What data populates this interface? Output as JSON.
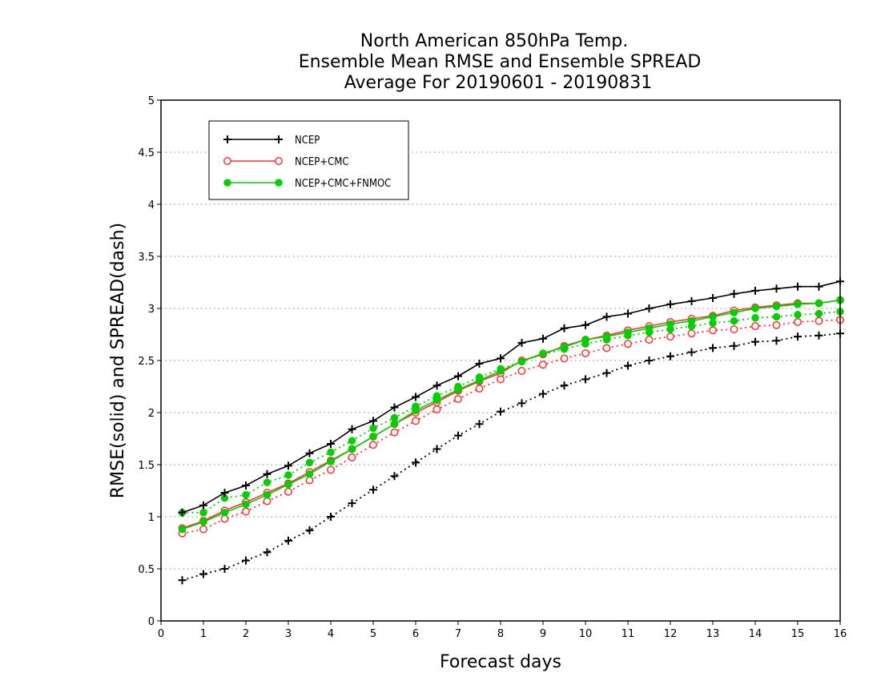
{
  "chart_data": {
    "type": "line",
    "title": [
      "North American 850hPa Temp.",
      "Ensemble Mean RMSE and Ensemble SPREAD",
      "Average For 20190601 - 20190831"
    ],
    "xlabel": "Forecast days",
    "ylabel": "RMSE(solid) and SPREAD(dash)",
    "xlim": [
      0,
      16
    ],
    "ylim": [
      0,
      5
    ],
    "xticks": [
      "0",
      "1",
      "2",
      "3",
      "4",
      "5",
      "6",
      "7",
      "8",
      "9",
      "10",
      "11",
      "12",
      "13",
      "14",
      "15",
      "16"
    ],
    "yticks": [
      "0",
      "0.5",
      "1",
      "1.5",
      "2",
      "2.5",
      "3",
      "3.5",
      "4",
      "4.5",
      "5"
    ],
    "grid": "horizontal dotted",
    "legend_position": "top-left",
    "x": [
      0.5,
      1,
      1.5,
      2,
      2.5,
      3,
      3.5,
      4,
      4.5,
      5,
      5.5,
      6,
      6.5,
      7,
      7.5,
      8,
      8.5,
      9,
      9.5,
      10,
      10.5,
      11,
      11.5,
      12,
      12.5,
      13,
      13.5,
      14,
      14.5,
      15,
      15.5,
      16
    ],
    "series": [
      {
        "name": "NCEP",
        "color": "#000000",
        "marker": "plus",
        "rmse": [
          1.04,
          1.11,
          1.23,
          1.3,
          1.41,
          1.49,
          1.61,
          1.7,
          1.84,
          1.92,
          2.05,
          2.15,
          2.26,
          2.35,
          2.47,
          2.52,
          2.67,
          2.71,
          2.81,
          2.84,
          2.92,
          2.95,
          3.0,
          3.04,
          3.07,
          3.1,
          3.14,
          3.17,
          3.19,
          3.21,
          3.21,
          3.26
        ],
        "spread": [
          0.39,
          0.45,
          0.5,
          0.58,
          0.66,
          0.77,
          0.87,
          1.0,
          1.13,
          1.26,
          1.39,
          1.52,
          1.65,
          1.78,
          1.89,
          2.01,
          2.09,
          2.18,
          2.26,
          2.32,
          2.38,
          2.45,
          2.5,
          2.54,
          2.58,
          2.62,
          2.64,
          2.68,
          2.69,
          2.73,
          2.74,
          2.76
        ]
      },
      {
        "name": "NCEP+CMC",
        "color": "#ff3030",
        "marker": "open-circle",
        "rmse": [
          0.89,
          0.96,
          1.06,
          1.14,
          1.23,
          1.32,
          1.43,
          1.54,
          1.65,
          1.77,
          1.89,
          2.0,
          2.1,
          2.21,
          2.3,
          2.38,
          2.5,
          2.56,
          2.64,
          2.7,
          2.74,
          2.79,
          2.83,
          2.87,
          2.9,
          2.93,
          2.98,
          3.01,
          3.03,
          3.05,
          3.05,
          3.08
        ],
        "spread": [
          0.84,
          0.88,
          0.98,
          1.05,
          1.15,
          1.24,
          1.35,
          1.45,
          1.57,
          1.69,
          1.81,
          1.92,
          2.03,
          2.13,
          2.23,
          2.32,
          2.4,
          2.46,
          2.52,
          2.57,
          2.62,
          2.66,
          2.7,
          2.73,
          2.76,
          2.79,
          2.8,
          2.83,
          2.84,
          2.87,
          2.88,
          2.89
        ]
      },
      {
        "name": "NCEP+CMC+FNMOC",
        "color": "#00d000",
        "marker": "filled-circle",
        "rmse": [
          0.88,
          0.95,
          1.04,
          1.12,
          1.21,
          1.31,
          1.41,
          1.53,
          1.65,
          1.77,
          1.89,
          2.02,
          2.12,
          2.22,
          2.31,
          2.4,
          2.49,
          2.57,
          2.63,
          2.7,
          2.73,
          2.77,
          2.81,
          2.85,
          2.88,
          2.92,
          2.96,
          3.0,
          3.02,
          3.04,
          3.05,
          3.08
        ],
        "spread": [
          1.04,
          1.04,
          1.18,
          1.21,
          1.33,
          1.4,
          1.52,
          1.62,
          1.73,
          1.85,
          1.95,
          2.06,
          2.16,
          2.25,
          2.34,
          2.42,
          2.49,
          2.56,
          2.61,
          2.66,
          2.7,
          2.74,
          2.77,
          2.8,
          2.83,
          2.86,
          2.88,
          2.91,
          2.92,
          2.94,
          2.95,
          2.97
        ]
      }
    ]
  }
}
